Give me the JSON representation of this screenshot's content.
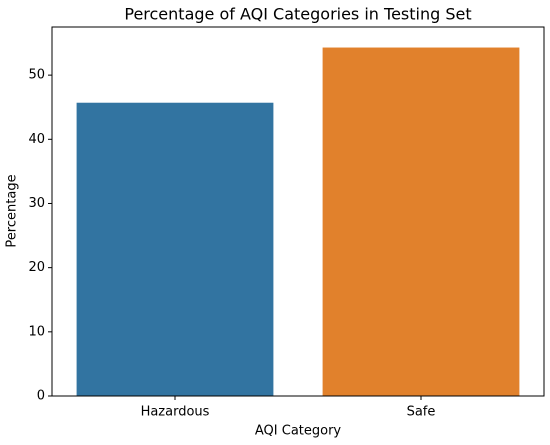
{
  "chart_data": {
    "type": "bar",
    "title": "Percentage of AQI Categories in Testing Set",
    "x_label": "AQI Category",
    "y_label": "Percentage",
    "categories": [
      "Hazardous",
      "Safe"
    ],
    "values": [
      45.7,
      54.3
    ],
    "colors": [
      "#3274a1",
      "#e1812c"
    ],
    "ylim": [
      0,
      57.5
    ],
    "yticks": [
      0,
      10,
      20,
      30,
      40,
      50
    ],
    "grid": false
  }
}
